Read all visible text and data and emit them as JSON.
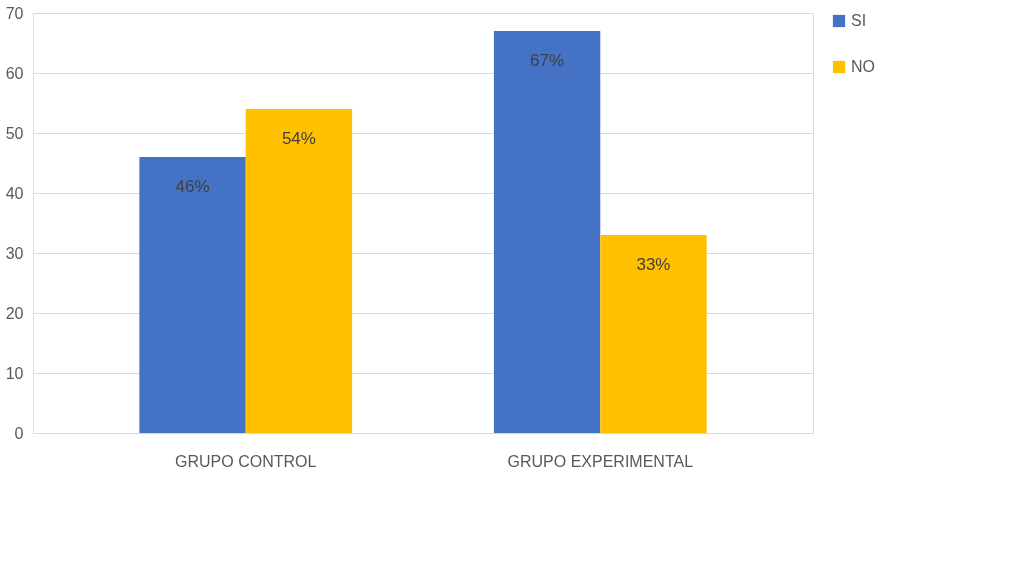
{
  "chart_data": {
    "type": "bar",
    "categories": [
      "GRUPO CONTROL",
      "GRUPO EXPERIMENTAL"
    ],
    "series": [
      {
        "name": "SI",
        "color": "#4472c4",
        "values": [
          46,
          67
        ],
        "value_labels": [
          "46%",
          "67%"
        ]
      },
      {
        "name": "NO",
        "color": "#ffc000",
        "values": [
          54,
          33
        ],
        "value_labels": [
          "54%",
          "33%"
        ]
      }
    ],
    "ylim": [
      0,
      70
    ],
    "yticks": [
      0,
      10,
      20,
      30,
      40,
      50,
      60,
      70
    ],
    "grid": "y",
    "legend": "right"
  }
}
